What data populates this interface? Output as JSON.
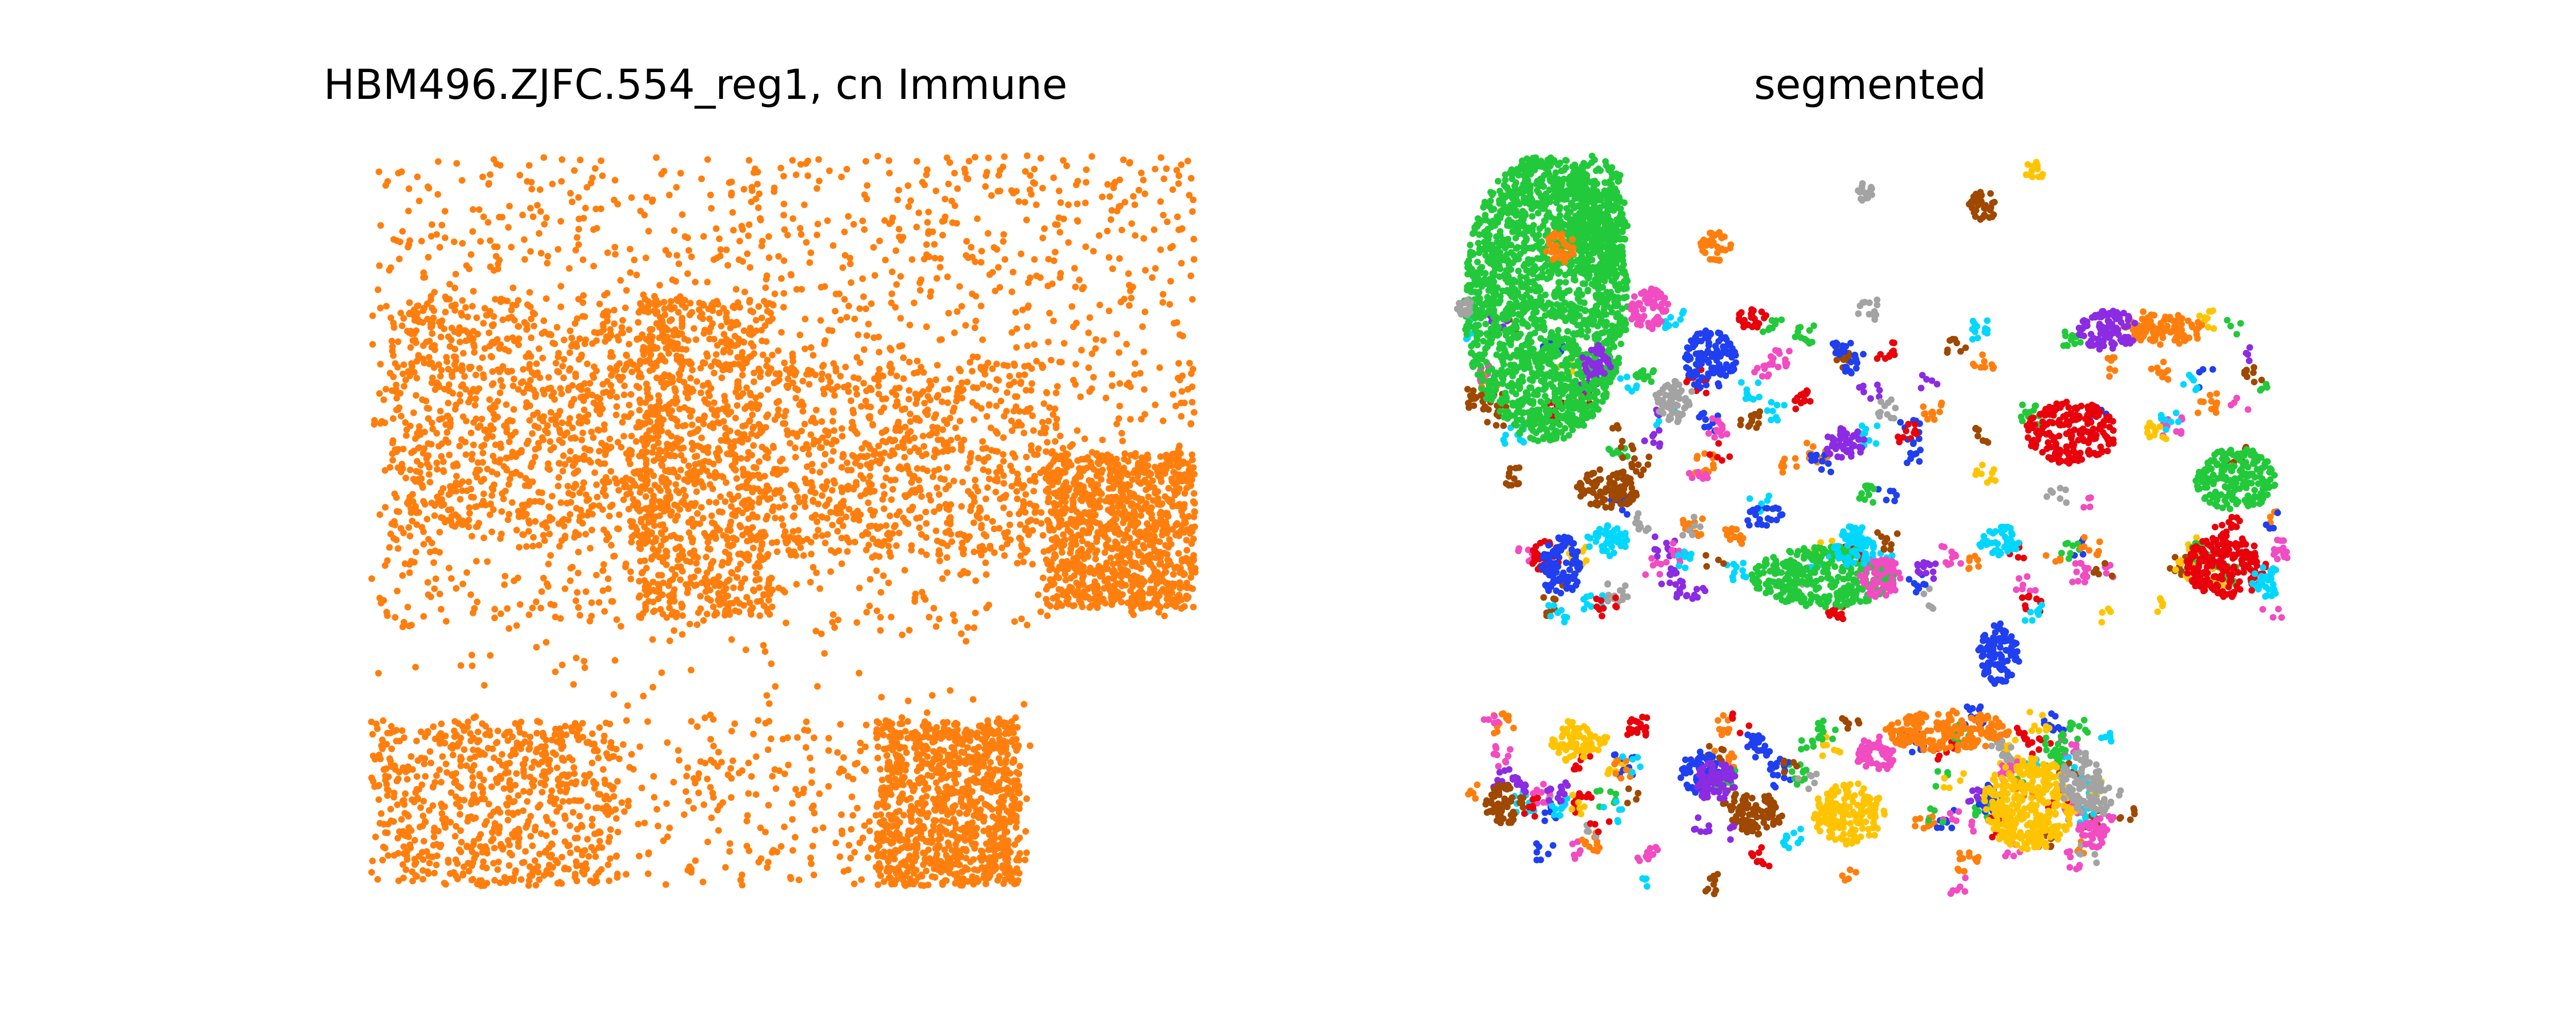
{
  "chart_data": [
    {
      "type": "scatter",
      "title": "HBM496.ZJFC.554_reg1, cn Immune",
      "xlabel": "",
      "ylabel": "",
      "grid": false,
      "axes_visible": false,
      "series": [
        {
          "color": "#ff7f0e",
          "approx_points": 9000,
          "regions": [
            {
              "x": [
                720,
                2320
              ],
              "y": [
                300,
                1720
              ],
              "density": 0.35
            },
            {
              "x": [
                760,
                1300
              ],
              "y": [
                580,
                1050
              ],
              "density": 1.0
            },
            {
              "x": [
                1240,
                1500
              ],
              "y": [
                580,
                1200
              ],
              "density": 0.9
            },
            {
              "x": [
                1500,
                2050
              ],
              "y": [
                700,
                1080
              ],
              "density": 0.7
            },
            {
              "x": [
                2030,
                2320
              ],
              "y": [
                880,
                1180
              ],
              "density": 1.0
            },
            {
              "x": [
                1700,
                1980
              ],
              "y": [
                1400,
                1720
              ],
              "density": 1.0
            },
            {
              "x": [
                720,
                1200
              ],
              "y": [
                1400,
                1720
              ],
              "density": 0.6
            }
          ]
        }
      ]
    },
    {
      "type": "scatter",
      "title": "segmented",
      "xlabel": "",
      "ylabel": "",
      "grid": false,
      "axes_visible": false,
      "series": [
        {
          "color": "#22c93a",
          "clusters": [
            [
              3000,
              580,
              160,
              280
            ],
            [
              3100,
              420,
              60,
              120
            ],
            [
              3540,
              1120,
              140,
              60
            ],
            [
              4340,
              930,
              80,
              60
            ]
          ]
        },
        {
          "color": "#ff7f0e",
          "clusters": [
            [
              3030,
              480,
              30,
              30
            ],
            [
              3330,
              480,
              30,
              30
            ],
            [
              3780,
              1420,
              120,
              40
            ],
            [
              4200,
              640,
              80,
              30
            ]
          ]
        },
        {
          "color": "#ffc400",
          "clusters": [
            [
              3590,
              1580,
              70,
              60
            ],
            [
              3940,
              1560,
              90,
              90
            ],
            [
              3050,
              1440,
              40,
              40
            ],
            [
              3950,
              330,
              20,
              20
            ]
          ]
        },
        {
          "color": "#e8000b",
          "clusters": [
            [
              4020,
              840,
              90,
              60
            ],
            [
              4320,
              1100,
              80,
              60
            ],
            [
              3000,
              1080,
              30,
              30
            ],
            [
              3400,
              620,
              30,
              20
            ]
          ]
        },
        {
          "color": "#1f3ff0",
          "clusters": [
            [
              3320,
              700,
              50,
              60
            ],
            [
              3880,
              1270,
              40,
              60
            ],
            [
              3030,
              1100,
              40,
              60
            ],
            [
              3300,
              1500,
              40,
              40
            ]
          ]
        },
        {
          "color": "#8b2be2",
          "clusters": [
            [
              4090,
              640,
              60,
              40
            ],
            [
              3330,
              1520,
              40,
              40
            ],
            [
              3580,
              860,
              40,
              30
            ],
            [
              3100,
              700,
              30,
              30
            ]
          ]
        },
        {
          "color": "#9f4800",
          "clusters": [
            [
              3120,
              950,
              60,
              40
            ],
            [
              3410,
              1580,
              50,
              40
            ],
            [
              3850,
              400,
              30,
              30
            ],
            [
              2920,
              1560,
              40,
              40
            ]
          ]
        },
        {
          "color": "#f14cc1",
          "clusters": [
            [
              3650,
              1120,
              40,
              40
            ],
            [
              3200,
              600,
              40,
              40
            ],
            [
              3640,
              1470,
              40,
              30
            ],
            [
              4060,
              1620,
              30,
              30
            ]
          ]
        },
        {
          "color": "#a3a3a3",
          "clusters": [
            [
              4040,
              1520,
              40,
              60
            ],
            [
              3250,
              780,
              40,
              40
            ],
            [
              2840,
              600,
              20,
              20
            ],
            [
              3620,
              370,
              20,
              20
            ]
          ]
        },
        {
          "color": "#00d7ff",
          "clusters": [
            [
              3600,
              1060,
              40,
              40
            ],
            [
              3120,
              1050,
              40,
              30
            ],
            [
              3880,
              1050,
              40,
              30
            ],
            [
              4400,
              1130,
              30,
              30
            ]
          ]
        }
      ]
    }
  ]
}
